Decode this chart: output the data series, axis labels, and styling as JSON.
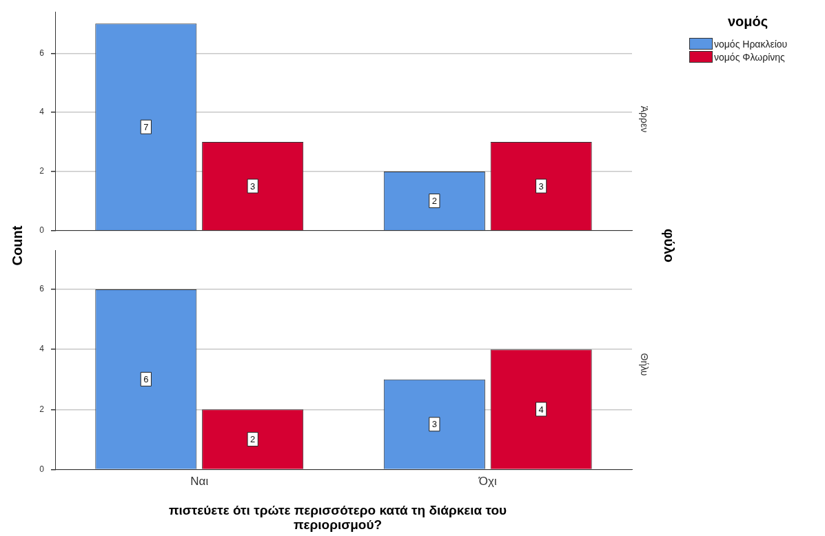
{
  "chart_data": [
    {
      "type": "bar",
      "categories": [
        null,
        null
      ],
      "ylabel": "Count",
      "y2label": "φύλο",
      "legend_title": "νομός",
      "legend": "top right",
      "annotations": [
        "Άρρεν"
      ],
      "ylim": [
        0,
        7.4
      ],
      "yticks": [
        0,
        2,
        4,
        6
      ],
      "grid": "y",
      "tick_labels": "y",
      "data_labels": true,
      "series": [
        {
          "name": "νομός Ηρακλείου",
          "color": "#5a96e3",
          "values": [
            7,
            2
          ]
        },
        {
          "name": "νομός Φλωρίνης",
          "color": "#d50032",
          "values": [
            3,
            3
          ]
        }
      ]
    },
    {
      "type": "bar",
      "categories": [
        "Ναι",
        "Όχι"
      ],
      "xlabel": "πιστεύετε ότι τρώτε περισσότερο κατά τη διάρκεια του περιορισμού?",
      "annotations": [
        "Θήλυ"
      ],
      "ylim": [
        0,
        7.3
      ],
      "yticks": [
        0,
        2,
        4,
        6
      ],
      "grid": "y",
      "data_labels": true,
      "series": [
        {
          "color": "#5a96e3",
          "values": [
            6,
            3
          ]
        },
        {
          "color": "#d50032",
          "values": [
            2,
            4
          ]
        }
      ]
    }
  ]
}
